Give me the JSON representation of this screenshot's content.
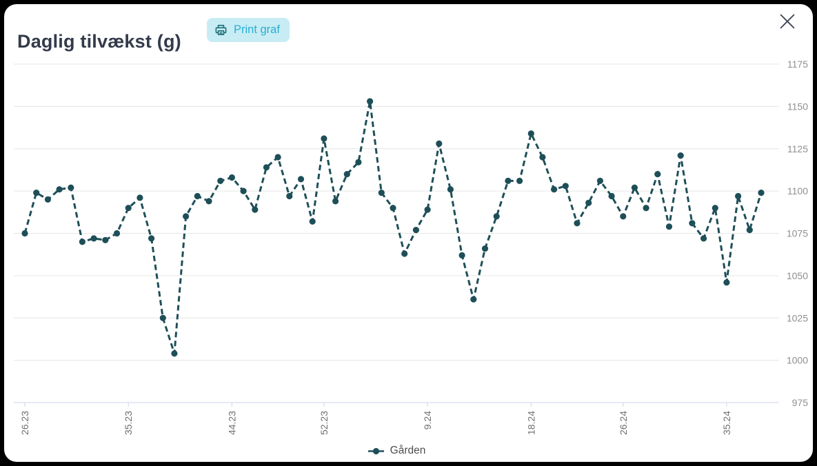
{
  "header": {
    "title": "Daglig tilvækst (g)",
    "print_button": "Print graf"
  },
  "icons": {
    "print": "printer-icon",
    "close": "close-icon"
  },
  "colors": {
    "series": "#1e4f58",
    "button_bg": "#c7ecf4",
    "button_text": "#2aafd3",
    "printer_icon": "#1a6b77",
    "title_text": "#333b4b",
    "grid": "#e6e6e6",
    "axis_line": "#ccd6eb",
    "y_label": "#8f8f8f",
    "x_label": "#6f6f6f",
    "legend_text": "#4d4d4d",
    "close_icon": "#3e4657"
  },
  "chart_data": {
    "type": "line",
    "title": "Daglig tilvækst (g)",
    "line_style": "dashed",
    "markers": true,
    "grid": "horizontal",
    "legend_position": "bottom",
    "ylim": [
      975,
      1175
    ],
    "y_ticks": [
      975,
      1000,
      1025,
      1050,
      1075,
      1100,
      1125,
      1150,
      1175
    ],
    "x_tick_labels": [
      "26.23",
      "35.23",
      "44.23",
      "52.23",
      "9.24",
      "18.24",
      "26.24",
      "35.24"
    ],
    "x_tick_indices": [
      0,
      9,
      18,
      26,
      35,
      44,
      52,
      61
    ],
    "series": [
      {
        "name": "Gården",
        "values": [
          1075,
          1099,
          1095,
          1101,
          1102,
          1070,
          1072,
          1071,
          1075,
          1090,
          1096,
          1072,
          1025,
          1004,
          1085,
          1097,
          1094,
          1106,
          1108,
          1100,
          1089,
          1114,
          1120,
          1097,
          1107,
          1082,
          1131,
          1094,
          1110,
          1117,
          1153,
          1099,
          1090,
          1063,
          1077,
          1089,
          1128,
          1101,
          1062,
          1036,
          1066,
          1085,
          1106,
          1106,
          1134,
          1120,
          1101,
          1103,
          1081,
          1093,
          1106,
          1097,
          1085,
          1102,
          1090,
          1110,
          1079,
          1121,
          1081,
          1072,
          1090,
          1046,
          1097,
          1077,
          1099
        ]
      }
    ]
  }
}
